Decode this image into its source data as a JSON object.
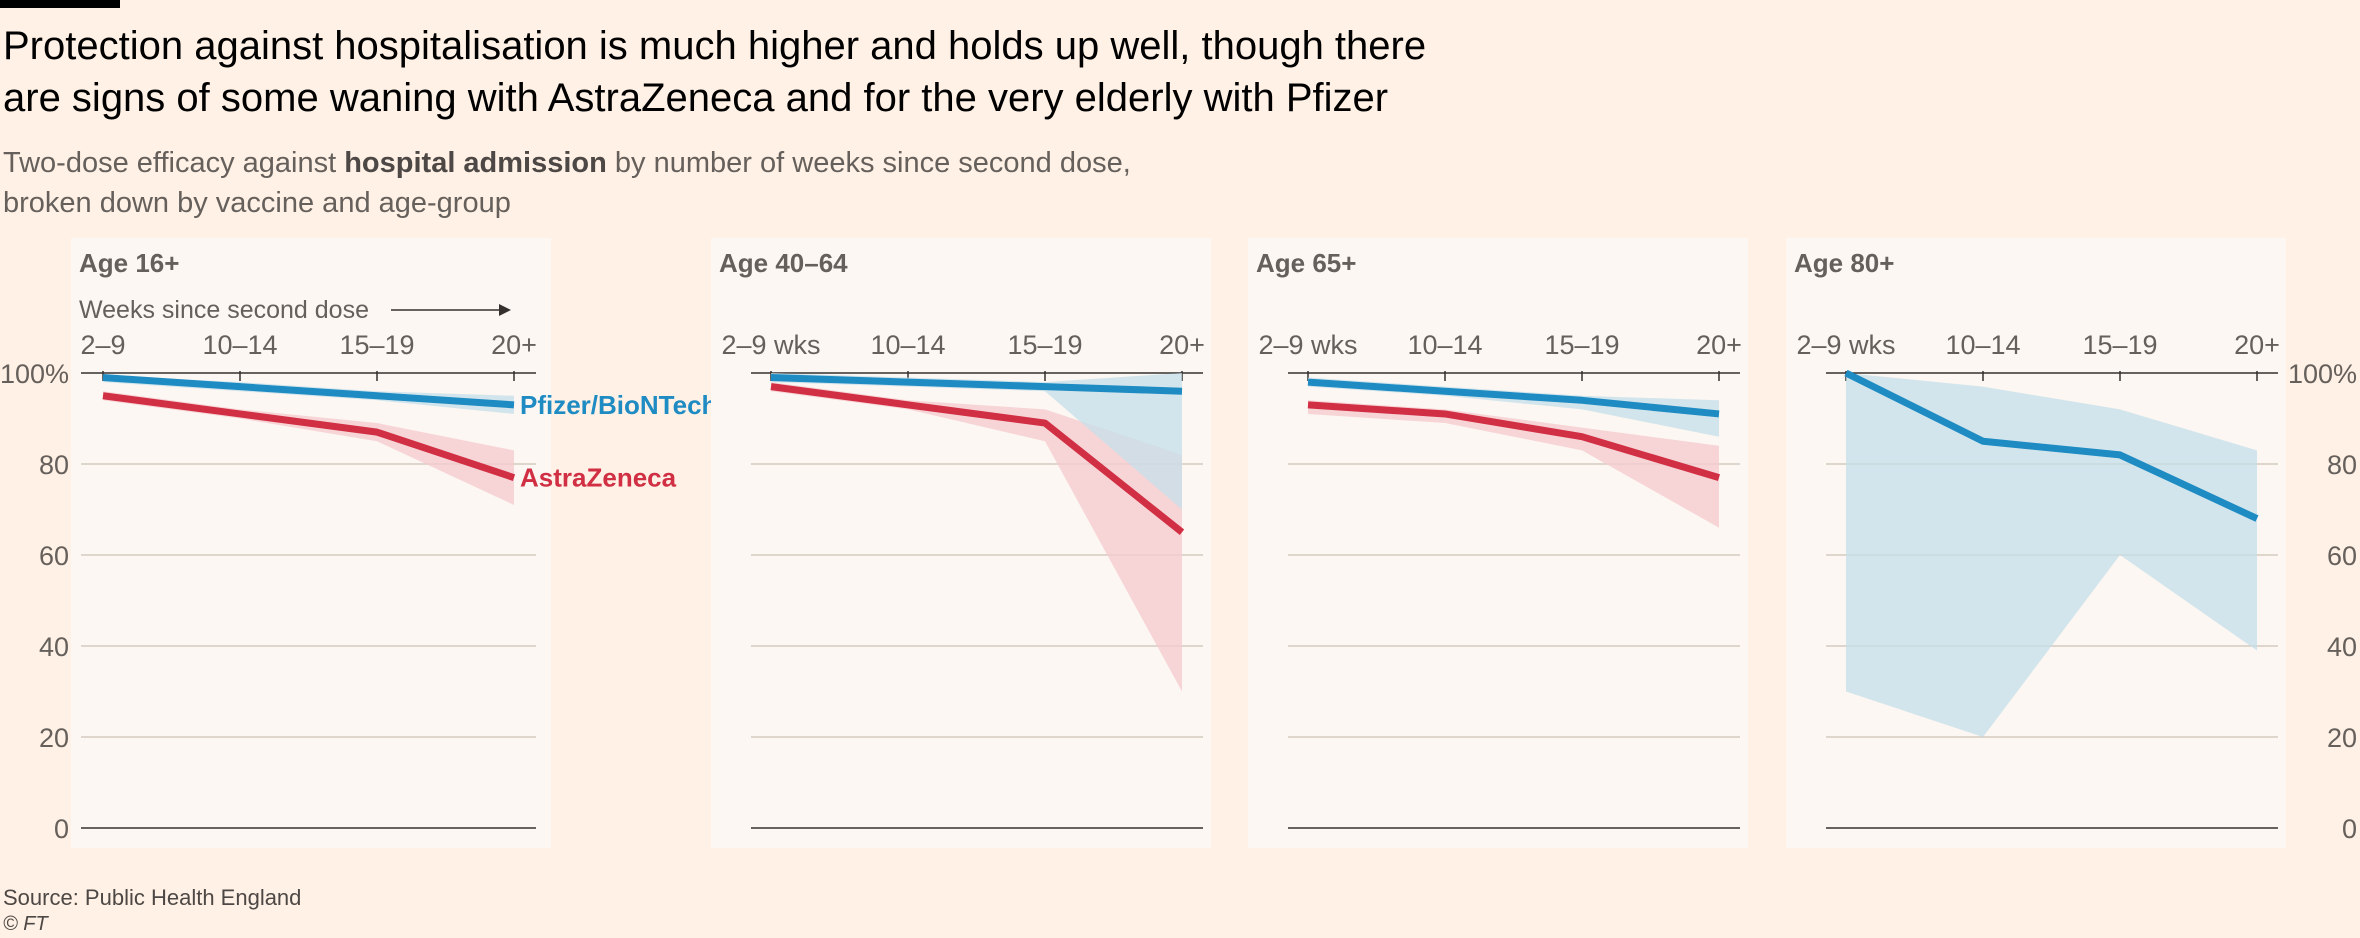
{
  "header": {
    "title_line1": "Protection against hospitalisation is much higher and holds up well, though there",
    "title_line2": "are signs of some waning with AstraZeneca and for the very elderly with Pfizer",
    "subtitle_pre": "Two-dose efficacy against ",
    "subtitle_bold": "hospital admission",
    "subtitle_post": " by number of weeks since second dose,",
    "subtitle_line2": "broken down by vaccine and age-group"
  },
  "footer": {
    "source": "Source: Public Health England",
    "copyright": "© FT"
  },
  "colors": {
    "background": "#fff1e5",
    "panel": "#fcf7f2",
    "pfizer": "#1e8bc3",
    "astrazeneca": "#d12f44",
    "pfizer_band": "#c6dfea",
    "astrazeneca_band": "#f5c9ce",
    "grid": "#ccc1b7",
    "axis": "#33302e",
    "text": "#66605c"
  },
  "chart_data": {
    "type": "line",
    "ylim": [
      0,
      100
    ],
    "y_ticks": [
      "0",
      "20",
      "40",
      "60",
      "80",
      "100%"
    ],
    "x_axis_note": "Weeks since second dose",
    "series_names": {
      "pfizer": "Pfizer/BioNTech",
      "astrazeneca": "AstraZeneca"
    },
    "panels": [
      {
        "title": "Age 16+",
        "categories": [
          "2–9",
          "10–14",
          "15–19",
          "20+"
        ],
        "show_axis_note": true,
        "show_series_labels": true,
        "series": [
          {
            "key": "astrazeneca",
            "values": [
              95,
              91,
              87,
              77
            ],
            "lower": [
              94,
              90,
              85,
              71
            ],
            "upper": [
              96,
              92,
              89,
              83
            ]
          },
          {
            "key": "pfizer",
            "values": [
              99,
              97,
              95,
              93
            ],
            "lower": [
              98,
              96,
              94,
              91
            ],
            "upper": [
              99.5,
              98,
              96,
              95
            ]
          }
        ]
      },
      {
        "title": "Age 40–64",
        "categories": [
          "2–9 wks",
          "10–14",
          "15–19",
          "20+"
        ],
        "series": [
          {
            "key": "astrazeneca",
            "values": [
              97,
              93,
              89,
              65
            ],
            "lower": [
              96,
              92,
              85,
              30
            ],
            "upper": [
              98,
              94,
              92,
              82
            ]
          },
          {
            "key": "pfizer",
            "values": [
              99,
              98,
              97,
              96
            ],
            "lower": [
              98,
              97,
              96,
              70
            ],
            "upper": [
              100,
              99,
              98,
              100
            ]
          }
        ]
      },
      {
        "title": "Age 65+",
        "categories": [
          "2–9 wks",
          "10–14",
          "15–19",
          "20+"
        ],
        "series": [
          {
            "key": "astrazeneca",
            "values": [
              93,
              91,
              86,
              77
            ],
            "lower": [
              91,
              89,
              83,
              66
            ],
            "upper": [
              94,
              92,
              88,
              84
            ]
          },
          {
            "key": "pfizer",
            "values": [
              98,
              96,
              94,
              91
            ],
            "lower": [
              97,
              95,
              92,
              86
            ],
            "upper": [
              99,
              97,
              95,
              94
            ]
          }
        ]
      },
      {
        "title": "Age 80+",
        "categories": [
          "2–9 wks",
          "10–14",
          "15–19",
          "20+"
        ],
        "series": [
          {
            "key": "pfizer",
            "values": [
              100,
              85,
              82,
              68
            ],
            "lower": [
              30,
              20,
              60,
              39
            ],
            "upper": [
              100,
              97,
              92,
              83
            ]
          }
        ]
      }
    ]
  }
}
